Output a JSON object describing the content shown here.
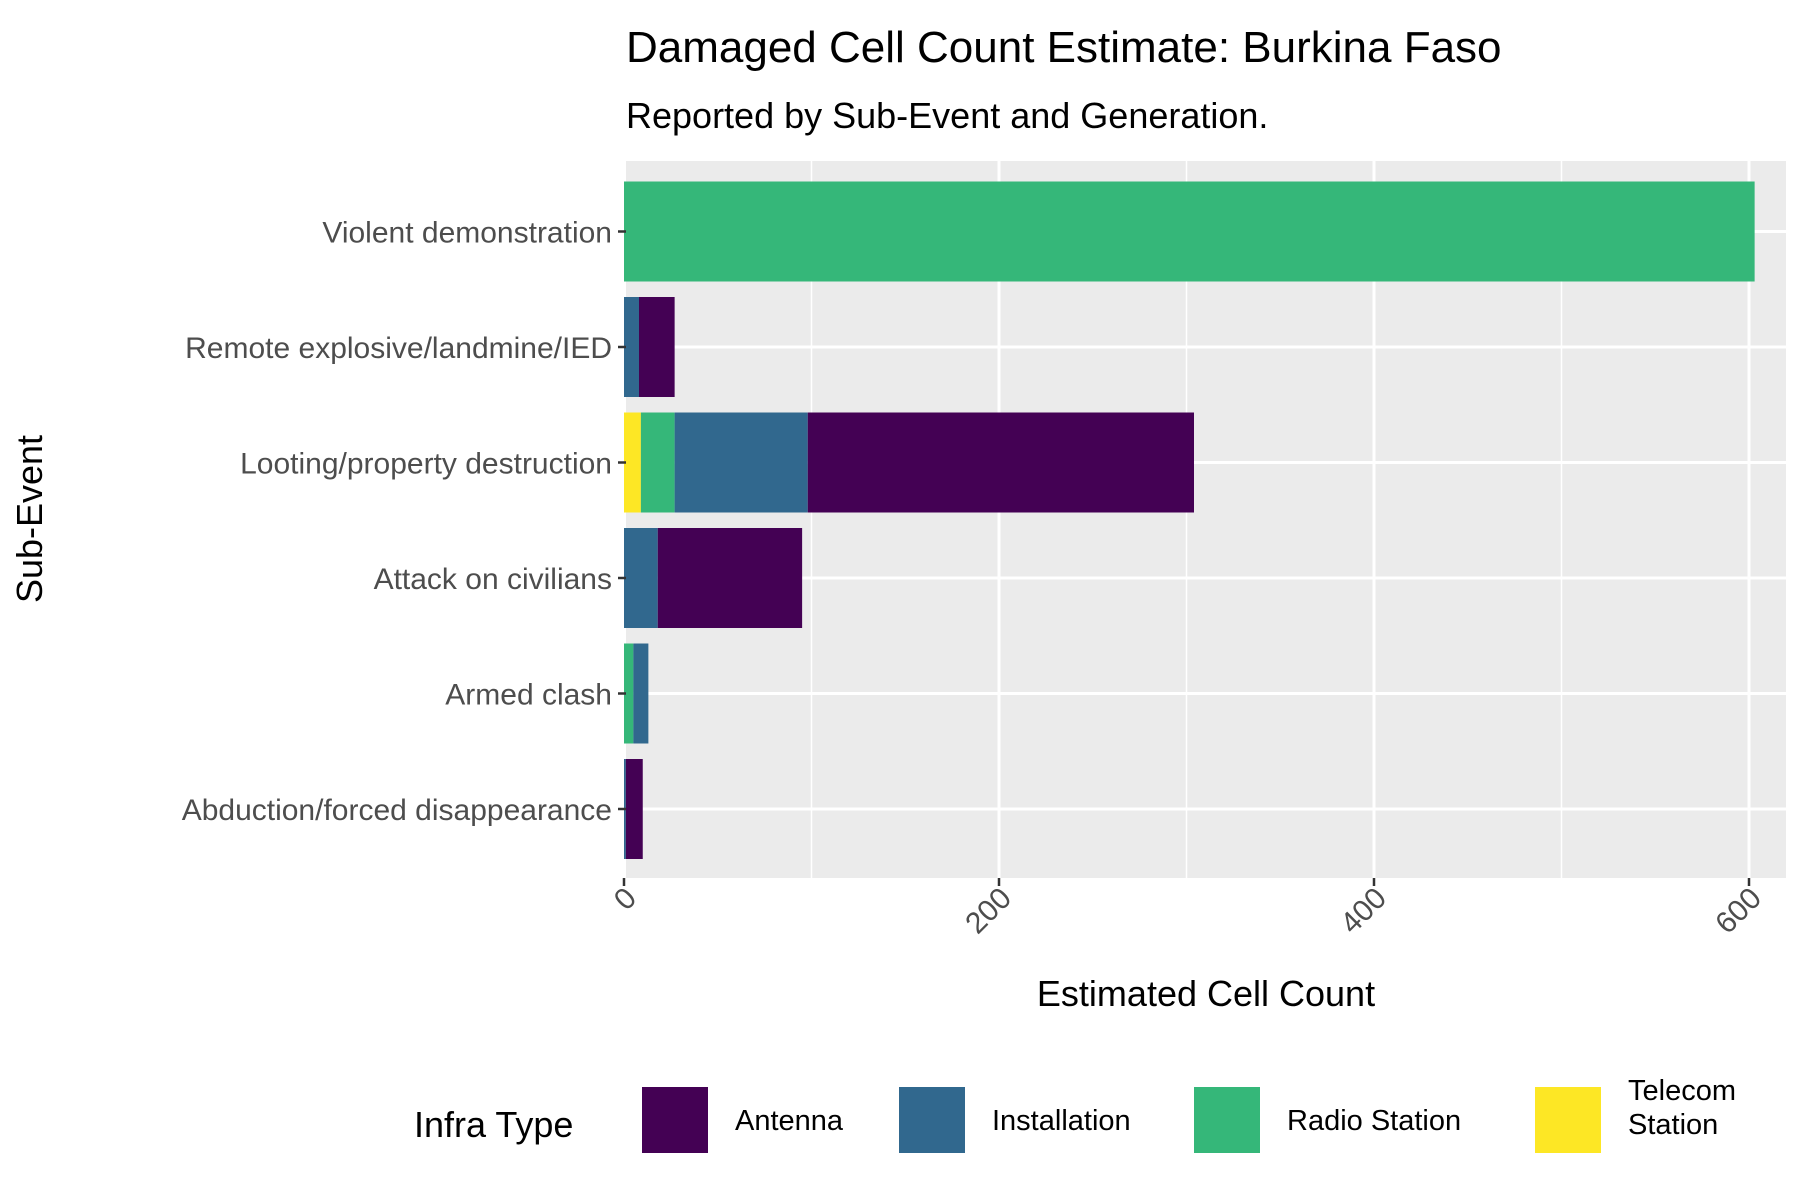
{
  "chart_data": {
    "type": "bar",
    "orientation": "horizontal",
    "stacked": true,
    "title": "Damaged Cell Count Estimate: Burkina Faso",
    "subtitle": "Reported by Sub-Event and Generation.",
    "xlabel": "Estimated Cell Count",
    "ylabel": "Sub-Event",
    "xlim": [
      0,
      620
    ],
    "x_ticks": [
      "0",
      "200",
      "400",
      "600"
    ],
    "categories": [
      "Abduction/forced disappearance",
      "Armed clash",
      "Attack on civilians",
      "Looting/property destruction",
      "Remote explosive/landmine/IED",
      "Violent demonstration"
    ],
    "series": [
      {
        "name": "Telecom Station",
        "color": "#FDE725",
        "values": [
          0,
          0,
          0,
          9,
          0,
          0
        ]
      },
      {
        "name": "Radio Station",
        "color": "#35B779",
        "values": [
          0,
          5,
          0,
          18,
          0,
          603
        ]
      },
      {
        "name": "Installation",
        "color": "#31688E",
        "values": [
          1,
          8,
          18,
          71,
          8,
          0
        ]
      },
      {
        "name": "Antenna",
        "color": "#440154",
        "values": [
          9,
          0,
          77,
          206,
          19,
          0
        ]
      }
    ],
    "legend": {
      "title": "Infra Type",
      "position": "bottom",
      "entries": [
        "Antenna",
        "Installation",
        "Radio Station",
        "Telecom\nStation"
      ]
    },
    "grid": true,
    "panel_background": "#EBEBEB"
  }
}
